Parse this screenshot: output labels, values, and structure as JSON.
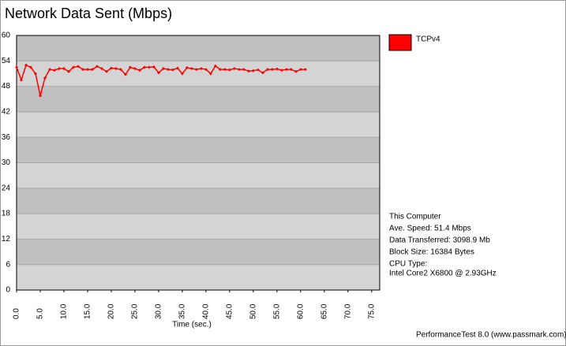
{
  "chart_data": {
    "type": "line",
    "title": "Network Data Sent (Mbps)",
    "x_label": "Time (sec.)",
    "x": [
      0,
      1,
      2,
      3,
      4,
      5,
      6,
      7,
      8,
      9,
      10,
      11,
      12,
      13,
      14,
      15,
      16,
      17,
      18,
      19,
      20,
      21,
      22,
      23,
      24,
      25,
      26,
      27,
      28,
      29,
      30,
      31,
      32,
      33,
      34,
      35,
      36,
      37,
      38,
      39,
      40,
      41,
      42,
      43,
      44,
      45,
      46,
      47,
      48,
      49,
      50,
      51,
      52,
      53,
      54,
      55,
      56,
      57,
      58,
      59,
      60,
      61
    ],
    "series": [
      {
        "name": "TCPv4",
        "color": "#ff0000",
        "values": [
          52.5,
          49.5,
          53,
          52.5,
          51,
          45.8,
          50,
          52,
          51.8,
          52.2,
          52.2,
          51.5,
          52.5,
          52.7,
          52,
          52,
          52,
          52.7,
          52.2,
          51.5,
          52.3,
          52.2,
          52,
          50.8,
          52.5,
          52.2,
          51.8,
          52.5,
          52.5,
          52.6,
          51.2,
          52.2,
          52,
          51.9,
          52.3,
          51,
          52.4,
          52.2,
          52,
          52.2,
          52,
          51,
          52.8,
          52,
          52,
          51.9,
          52.2,
          52,
          52,
          51.6,
          51.7,
          51.9,
          51.2,
          52,
          52,
          52.1,
          51.8,
          52,
          52,
          51.5,
          52,
          52
        ]
      }
    ],
    "xlim": [
      0,
      76.7
    ],
    "ylim": [
      0,
      60
    ],
    "xticks": [
      {
        "value": 0,
        "label": "0.0"
      },
      {
        "value": 5,
        "label": "5.0"
      },
      {
        "value": 10,
        "label": "10.0"
      },
      {
        "value": 15,
        "label": "15.0"
      },
      {
        "value": 20,
        "label": "20.0"
      },
      {
        "value": 25,
        "label": "25.0"
      },
      {
        "value": 30,
        "label": "30.0"
      },
      {
        "value": 35,
        "label": "35.0"
      },
      {
        "value": 40,
        "label": "40.0"
      },
      {
        "value": 45,
        "label": "45.0"
      },
      {
        "value": 50,
        "label": "50.0"
      },
      {
        "value": 55,
        "label": "55.0"
      },
      {
        "value": 60,
        "label": "60.0"
      },
      {
        "value": 65,
        "label": "65.0"
      },
      {
        "value": 70,
        "label": "70.0"
      },
      {
        "value": 75,
        "label": "75.0"
      }
    ],
    "yticks": [
      0,
      6,
      12,
      18,
      24,
      30,
      36,
      42,
      48,
      54,
      60
    ],
    "grid": true,
    "legend": "top-right",
    "annotations": [
      "This Computer",
      "Ave. Speed: 51.4 Mbps",
      "Data Transferred: 3098.9 Mb",
      "Block Size: 16384 Bytes",
      "CPU Type:",
      "Intel Core2 X6800 @ 2.93GHz"
    ],
    "footer": "PerformanceTest 8.0 (www.passmark.com)"
  }
}
